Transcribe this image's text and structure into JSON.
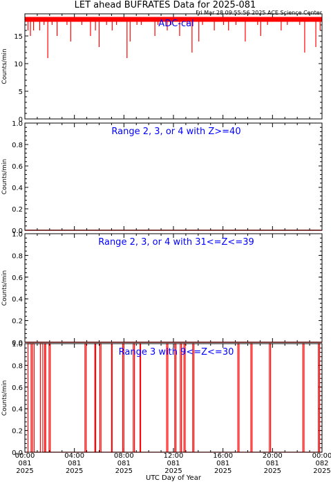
{
  "header": {
    "title": "LET ahead BUFRATES Data for 2025-081",
    "timestamp": "Fri Mar 28 09:55:56 2025 ACE Science Center"
  },
  "xaxis": {
    "label": "UTC Day of Year",
    "ticks": [
      {
        "hour": 0,
        "lines": [
          "00:00",
          "081",
          "2025"
        ]
      },
      {
        "hour": 4,
        "lines": [
          "04:00",
          "081",
          "2025"
        ]
      },
      {
        "hour": 8,
        "lines": [
          "08:00",
          "081",
          "2025"
        ]
      },
      {
        "hour": 12,
        "lines": [
          "12:00",
          "081",
          "2025"
        ]
      },
      {
        "hour": 16,
        "lines": [
          "16:00",
          "081",
          "2025"
        ]
      },
      {
        "hour": 20,
        "lines": [
          "20:00",
          "081",
          "2025"
        ]
      },
      {
        "hour": 24,
        "lines": [
          "00:00",
          "082",
          "2025"
        ]
      }
    ]
  },
  "colors": {
    "data": "#ff0000",
    "panel_label": "#0000ff",
    "axis": "#000000"
  },
  "chart_data": [
    {
      "type": "bar",
      "title": "ADC-cal",
      "ylabel": "Counts/min",
      "ylim": [
        0,
        19
      ],
      "yticks": [
        0,
        5,
        10,
        15
      ],
      "baseline": 18,
      "dips": [
        [
          0.25,
          16
        ],
        [
          0.45,
          15
        ],
        [
          0.7,
          16
        ],
        [
          1.2,
          16
        ],
        [
          1.55,
          17
        ],
        [
          1.85,
          11
        ],
        [
          2.2,
          17
        ],
        [
          2.6,
          15
        ],
        [
          3.4,
          17
        ],
        [
          3.7,
          14
        ],
        [
          4.6,
          17
        ],
        [
          5.3,
          15
        ],
        [
          5.7,
          16
        ],
        [
          6.0,
          13
        ],
        [
          6.6,
          17
        ],
        [
          7.05,
          16
        ],
        [
          7.4,
          17
        ],
        [
          8.25,
          11
        ],
        [
          8.5,
          14
        ],
        [
          9.05,
          17
        ],
        [
          9.4,
          17
        ],
        [
          10.5,
          15
        ],
        [
          10.75,
          17
        ],
        [
          11.5,
          16
        ],
        [
          11.8,
          17
        ],
        [
          12.5,
          15
        ],
        [
          13.1,
          17
        ],
        [
          13.5,
          12
        ],
        [
          14.05,
          14
        ],
        [
          14.35,
          17
        ],
        [
          15.3,
          16
        ],
        [
          16.05,
          17
        ],
        [
          16.45,
          16
        ],
        [
          17.05,
          17
        ],
        [
          17.8,
          14
        ],
        [
          18.8,
          17
        ],
        [
          19.05,
          15
        ],
        [
          19.6,
          17
        ],
        [
          20.7,
          16
        ],
        [
          21.2,
          17
        ],
        [
          22.2,
          17
        ],
        [
          22.6,
          12
        ],
        [
          23.5,
          13
        ],
        [
          23.85,
          16
        ]
      ]
    },
    {
      "type": "line",
      "title": "Range 2, 3, or 4 with Z>=40",
      "ylabel": "Counts/min",
      "ylim": [
        0,
        1
      ],
      "yticks": [
        0.0,
        0.2,
        0.4,
        0.6,
        0.8,
        1.0
      ],
      "x": [
        0,
        24
      ],
      "y": [
        0,
        0
      ]
    },
    {
      "type": "line",
      "title": "Range 2, 3, or 4 with 31<=Z<=39",
      "ylabel": "Counts/min",
      "ylim": [
        0,
        1
      ],
      "yticks": [
        0.0,
        0.2,
        0.4,
        0.6,
        0.8,
        1.0
      ],
      "x": [
        0,
        24
      ],
      "y": [
        0,
        0
      ]
    },
    {
      "type": "line",
      "title": "Range 3 with 9<=Z<=30",
      "ylabel": "Counts/min",
      "ylim": [
        0,
        1
      ],
      "yticks": [
        0.0,
        0.2,
        0.4,
        0.6,
        0.8,
        1.0
      ],
      "spikes": [
        [
          0.25,
          0.5
        ],
        [
          0.6,
          0.75
        ],
        [
          1.25,
          1.45
        ],
        [
          1.6,
          1.68
        ],
        [
          1.95,
          2.05
        ],
        [
          4.85,
          4.95
        ],
        [
          5.65,
          5.72
        ],
        [
          6.05,
          6.15
        ],
        [
          7.0,
          7.05
        ],
        [
          7.9,
          8.0
        ],
        [
          8.75,
          8.85
        ],
        [
          9.3,
          9.35
        ],
        [
          11.45,
          11.55
        ],
        [
          12.1,
          12.2
        ],
        [
          12.55,
          12.65
        ],
        [
          12.85,
          12.95
        ],
        [
          13.55,
          13.65
        ],
        [
          17.2,
          17.3
        ],
        [
          18.25,
          18.35
        ],
        [
          19.75,
          19.85
        ],
        [
          22.45,
          22.55
        ],
        [
          23.7,
          23.8
        ]
      ]
    }
  ]
}
